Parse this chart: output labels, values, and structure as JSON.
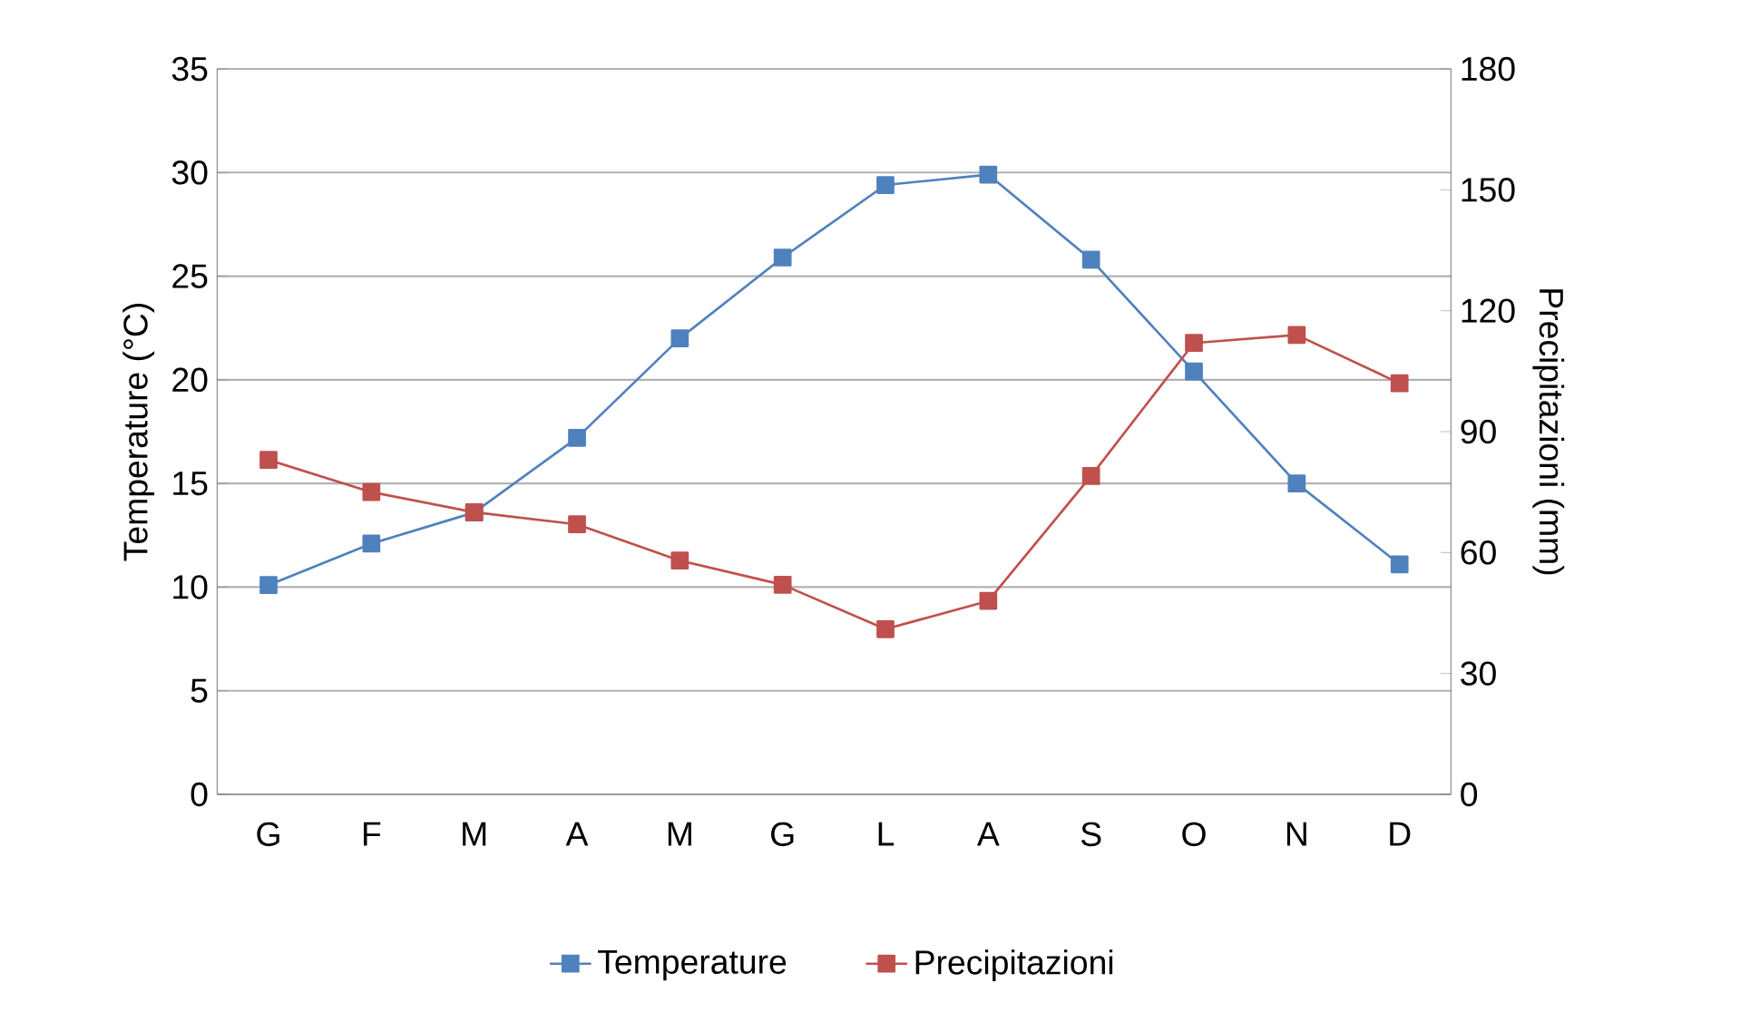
{
  "chart_data": {
    "type": "line",
    "categories": [
      "G",
      "F",
      "M",
      "A",
      "M",
      "G",
      "L",
      "A",
      "S",
      "O",
      "N",
      "D"
    ],
    "series": [
      {
        "name": "Temperature",
        "color": "#4f81bd",
        "values": [
          10.1,
          12.1,
          13.6,
          17.2,
          22.0,
          25.9,
          29.4,
          29.9,
          25.8,
          20.4,
          15.0,
          11.1
        ]
      },
      {
        "name": "Precipitazioni",
        "color": "#c0504d",
        "axis": "y2",
        "values": [
          83,
          75,
          70,
          67,
          58,
          52,
          41,
          48,
          79,
          112,
          114,
          102
        ]
      }
    ],
    "ylabel": "Temperature (°C)",
    "y2label": "Precipitazioni (mm)",
    "ylim": [
      0,
      35
    ],
    "yticks": [
      0,
      5,
      10,
      15,
      20,
      25,
      30,
      35
    ],
    "y2lim": [
      0,
      180
    ],
    "y2ticks": [
      0,
      30,
      60,
      90,
      120,
      150,
      180
    ],
    "grid": "y",
    "legend": "bottom",
    "marker": "square",
    "line_style": "solid"
  }
}
